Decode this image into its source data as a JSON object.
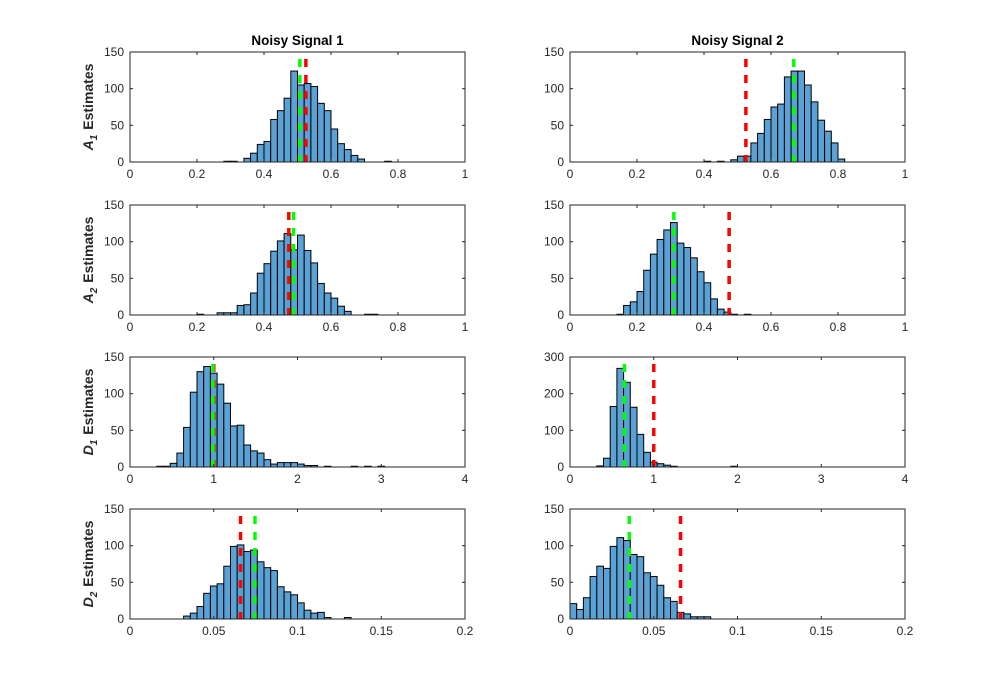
{
  "figure": {
    "background": "#ffffff",
    "bar_color": "#5aa2d5",
    "bar_edge": "#000000",
    "red_line_color": "#ff0000",
    "green_line_color": "#00ff00"
  },
  "chart_data": [
    {
      "type": "bar",
      "title": "Noisy Signal 1",
      "ylabel": {
        "symbol": "A",
        "sub": "1",
        "text": "Estimates"
      },
      "xlim": [
        0,
        1
      ],
      "ylim": [
        0,
        150
      ],
      "xticks": [
        0,
        0.2,
        0.4,
        0.6,
        0.8,
        1
      ],
      "yticks": [
        0,
        50,
        100,
        150
      ],
      "bin_start": 0.28,
      "bin_width": 0.02,
      "counts": [
        1,
        1,
        0,
        5,
        12,
        24,
        28,
        58,
        70,
        87,
        124,
        105,
        107,
        103,
        80,
        70,
        45,
        25,
        17,
        9,
        4,
        0,
        0,
        0,
        1
      ],
      "red_line": 0.525,
      "green_line": 0.507
    },
    {
      "type": "bar",
      "title": "Noisy Signal 2",
      "ylabel": null,
      "xlim": [
        0,
        1
      ],
      "ylim": [
        0,
        150
      ],
      "xticks": [
        0,
        0.2,
        0.4,
        0.6,
        0.8,
        1
      ],
      "yticks": [
        0,
        50,
        100,
        150
      ],
      "bin_start": 0.4,
      "bin_width": 0.02,
      "counts": [
        1,
        0,
        1,
        0,
        3,
        8,
        8,
        26,
        39,
        58,
        75,
        79,
        116,
        124,
        124,
        105,
        82,
        57,
        42,
        26,
        4
      ],
      "red_line": 0.525,
      "green_line": 0.668
    },
    {
      "type": "bar",
      "title": "",
      "ylabel": {
        "symbol": "A",
        "sub": "2",
        "text": "Estimates"
      },
      "xlim": [
        0,
        1
      ],
      "ylim": [
        0,
        150
      ],
      "xticks": [
        0,
        0.2,
        0.4,
        0.6,
        0.8,
        1
      ],
      "yticks": [
        0,
        50,
        100,
        150
      ],
      "bin_start": 0.2,
      "bin_width": 0.02,
      "counts": [
        1,
        0,
        0,
        3,
        3,
        3,
        13,
        14,
        30,
        57,
        70,
        87,
        101,
        111,
        89,
        109,
        88,
        71,
        43,
        30,
        23,
        12,
        5,
        0,
        0,
        1,
        1
      ],
      "red_line": 0.474,
      "green_line": 0.488
    },
    {
      "type": "bar",
      "title": "",
      "ylabel": null,
      "xlim": [
        0,
        1
      ],
      "ylim": [
        0,
        150
      ],
      "xticks": [
        0,
        0.2,
        0.4,
        0.6,
        0.8,
        1
      ],
      "yticks": [
        0,
        50,
        100,
        150
      ],
      "bin_start": 0.14,
      "bin_width": 0.02,
      "counts": [
        1,
        13,
        18,
        32,
        61,
        83,
        103,
        116,
        126,
        98,
        92,
        78,
        59,
        44,
        22,
        8,
        4,
        1,
        0,
        1
      ],
      "red_line": 0.475,
      "green_line": 0.31
    },
    {
      "type": "bar",
      "title": "",
      "ylabel": {
        "symbol": "D",
        "sub": "1",
        "text": "Estimates"
      },
      "xlim": [
        0,
        4
      ],
      "ylim": [
        0,
        150
      ],
      "xticks": [
        0,
        1,
        2,
        3,
        4
      ],
      "yticks": [
        0,
        50,
        100,
        150
      ],
      "bin_start": 0.32,
      "bin_width": 0.08,
      "counts": [
        1,
        1,
        5,
        19,
        54,
        102,
        130,
        137,
        128,
        113,
        87,
        56,
        57,
        30,
        22,
        19,
        10,
        4,
        6,
        6,
        6,
        4,
        2,
        2,
        0,
        1,
        0,
        0,
        0,
        1,
        0,
        1,
        0,
        1
      ],
      "red_line": 1.0,
      "green_line": 0.99
    },
    {
      "type": "bar",
      "title": "",
      "ylabel": null,
      "xlim": [
        0,
        4
      ],
      "ylim": [
        0,
        300
      ],
      "xticks": [
        0,
        1,
        2,
        3,
        4
      ],
      "yticks": [
        0,
        100,
        200,
        300
      ],
      "bin_start": 0.32,
      "bin_width": 0.08,
      "counts": [
        3,
        24,
        165,
        269,
        231,
        163,
        89,
        40,
        13,
        9,
        5,
        2,
        0,
        0,
        0,
        0,
        0,
        0,
        0,
        0,
        2
      ],
      "red_line": 1.0,
      "green_line": 0.65
    },
    {
      "type": "bar",
      "title": "",
      "ylabel": {
        "symbol": "D",
        "sub": "2",
        "text": "Estimates"
      },
      "xlim": [
        0,
        0.2
      ],
      "ylim": [
        0,
        150
      ],
      "xticks": [
        0,
        0.05,
        0.1,
        0.15,
        0.2
      ],
      "yticks": [
        0,
        50,
        100,
        150
      ],
      "bin_start": 0.032,
      "bin_width": 0.004,
      "counts": [
        4,
        8,
        17,
        35,
        45,
        48,
        72,
        99,
        101,
        92,
        94,
        78,
        70,
        66,
        44,
        37,
        33,
        22,
        12,
        8,
        9,
        2,
        0,
        0,
        2
      ],
      "red_line": 0.066,
      "green_line": 0.0746
    },
    {
      "type": "bar",
      "title": "",
      "ylabel": null,
      "xlim": [
        0,
        0.2
      ],
      "ylim": [
        0,
        150
      ],
      "xticks": [
        0,
        0.05,
        0.1,
        0.15,
        0.2
      ],
      "yticks": [
        0,
        50,
        100,
        150
      ],
      "bin_start": 0.0,
      "bin_width": 0.004,
      "counts": [
        21,
        13,
        29,
        58,
        72,
        69,
        99,
        111,
        107,
        88,
        85,
        63,
        58,
        46,
        29,
        24,
        9,
        7,
        3,
        3,
        3
      ],
      "red_line": 0.066,
      "green_line": 0.0354
    }
  ]
}
